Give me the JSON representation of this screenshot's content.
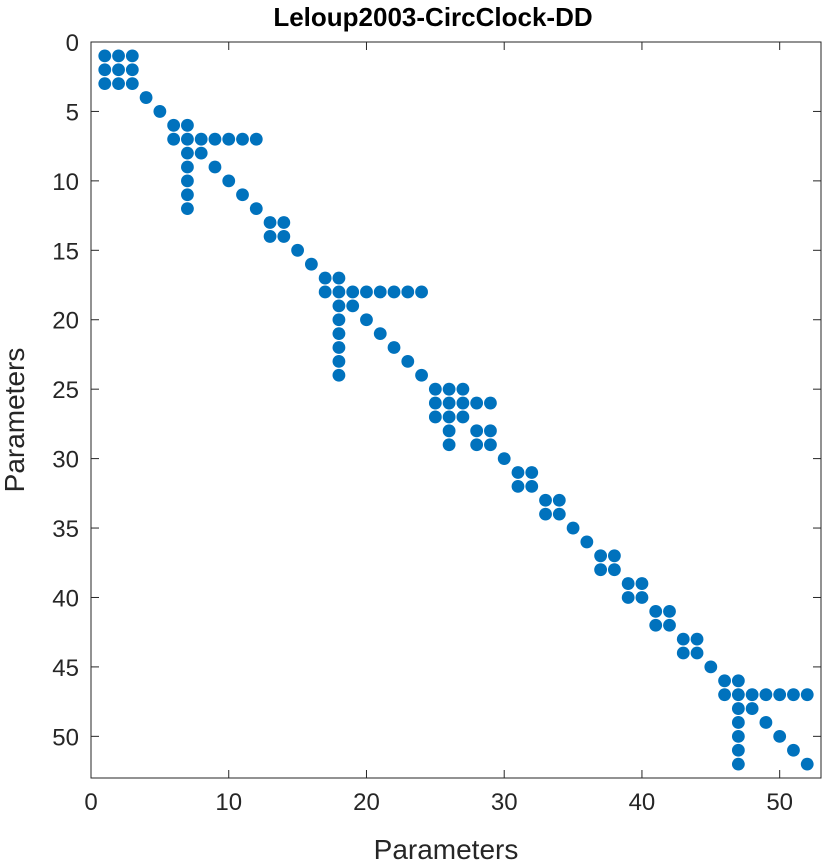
{
  "chart_data": {
    "type": "scatter",
    "title": "Leloup2003-CircClock-DD",
    "xlabel": "Parameters",
    "ylabel": "Parameters",
    "xlim": [
      0,
      53
    ],
    "ylim": [
      0,
      53
    ],
    "y_reversed": true,
    "grid": false,
    "marker_color": "#0072BD",
    "x_ticks": [
      0,
      10,
      20,
      30,
      40,
      50
    ],
    "y_ticks": [
      0,
      5,
      10,
      15,
      20,
      25,
      30,
      35,
      40,
      45,
      50
    ],
    "points": [
      [
        1,
        1
      ],
      [
        2,
        1
      ],
      [
        3,
        1
      ],
      [
        1,
        2
      ],
      [
        2,
        2
      ],
      [
        3,
        2
      ],
      [
        1,
        3
      ],
      [
        2,
        3
      ],
      [
        3,
        3
      ],
      [
        4,
        4
      ],
      [
        5,
        5
      ],
      [
        6,
        6
      ],
      [
        7,
        6
      ],
      [
        6,
        7
      ],
      [
        7,
        7
      ],
      [
        8,
        7
      ],
      [
        9,
        7
      ],
      [
        10,
        7
      ],
      [
        11,
        7
      ],
      [
        12,
        7
      ],
      [
        7,
        8
      ],
      [
        8,
        8
      ],
      [
        7,
        9
      ],
      [
        9,
        9
      ],
      [
        7,
        10
      ],
      [
        10,
        10
      ],
      [
        7,
        11
      ],
      [
        11,
        11
      ],
      [
        7,
        12
      ],
      [
        12,
        12
      ],
      [
        13,
        13
      ],
      [
        14,
        13
      ],
      [
        13,
        14
      ],
      [
        14,
        14
      ],
      [
        15,
        15
      ],
      [
        16,
        16
      ],
      [
        17,
        17
      ],
      [
        18,
        17
      ],
      [
        17,
        18
      ],
      [
        18,
        18
      ],
      [
        19,
        18
      ],
      [
        20,
        18
      ],
      [
        21,
        18
      ],
      [
        22,
        18
      ],
      [
        23,
        18
      ],
      [
        24,
        18
      ],
      [
        18,
        19
      ],
      [
        19,
        19
      ],
      [
        18,
        20
      ],
      [
        20,
        20
      ],
      [
        18,
        21
      ],
      [
        21,
        21
      ],
      [
        18,
        22
      ],
      [
        22,
        22
      ],
      [
        18,
        23
      ],
      [
        23,
        23
      ],
      [
        18,
        24
      ],
      [
        24,
        24
      ],
      [
        25,
        25
      ],
      [
        26,
        25
      ],
      [
        27,
        25
      ],
      [
        25,
        26
      ],
      [
        26,
        26
      ],
      [
        27,
        26
      ],
      [
        28,
        26
      ],
      [
        29,
        26
      ],
      [
        25,
        27
      ],
      [
        26,
        27
      ],
      [
        27,
        27
      ],
      [
        26,
        28
      ],
      [
        28,
        28
      ],
      [
        29,
        28
      ],
      [
        26,
        29
      ],
      [
        28,
        29
      ],
      [
        29,
        29
      ],
      [
        30,
        30
      ],
      [
        31,
        31
      ],
      [
        32,
        31
      ],
      [
        31,
        32
      ],
      [
        32,
        32
      ],
      [
        33,
        33
      ],
      [
        34,
        33
      ],
      [
        33,
        34
      ],
      [
        34,
        34
      ],
      [
        35,
        35
      ],
      [
        36,
        36
      ],
      [
        37,
        37
      ],
      [
        38,
        37
      ],
      [
        37,
        38
      ],
      [
        38,
        38
      ],
      [
        39,
        39
      ],
      [
        40,
        39
      ],
      [
        39,
        40
      ],
      [
        40,
        40
      ],
      [
        41,
        41
      ],
      [
        42,
        41
      ],
      [
        41,
        42
      ],
      [
        42,
        42
      ],
      [
        43,
        43
      ],
      [
        44,
        43
      ],
      [
        43,
        44
      ],
      [
        44,
        44
      ],
      [
        45,
        45
      ],
      [
        46,
        46
      ],
      [
        47,
        46
      ],
      [
        46,
        47
      ],
      [
        47,
        47
      ],
      [
        48,
        47
      ],
      [
        49,
        47
      ],
      [
        50,
        47
      ],
      [
        51,
        47
      ],
      [
        52,
        47
      ],
      [
        47,
        48
      ],
      [
        48,
        48
      ],
      [
        47,
        49
      ],
      [
        49,
        49
      ],
      [
        47,
        50
      ],
      [
        50,
        50
      ],
      [
        47,
        51
      ],
      [
        51,
        51
      ],
      [
        47,
        52
      ],
      [
        52,
        52
      ]
    ]
  }
}
